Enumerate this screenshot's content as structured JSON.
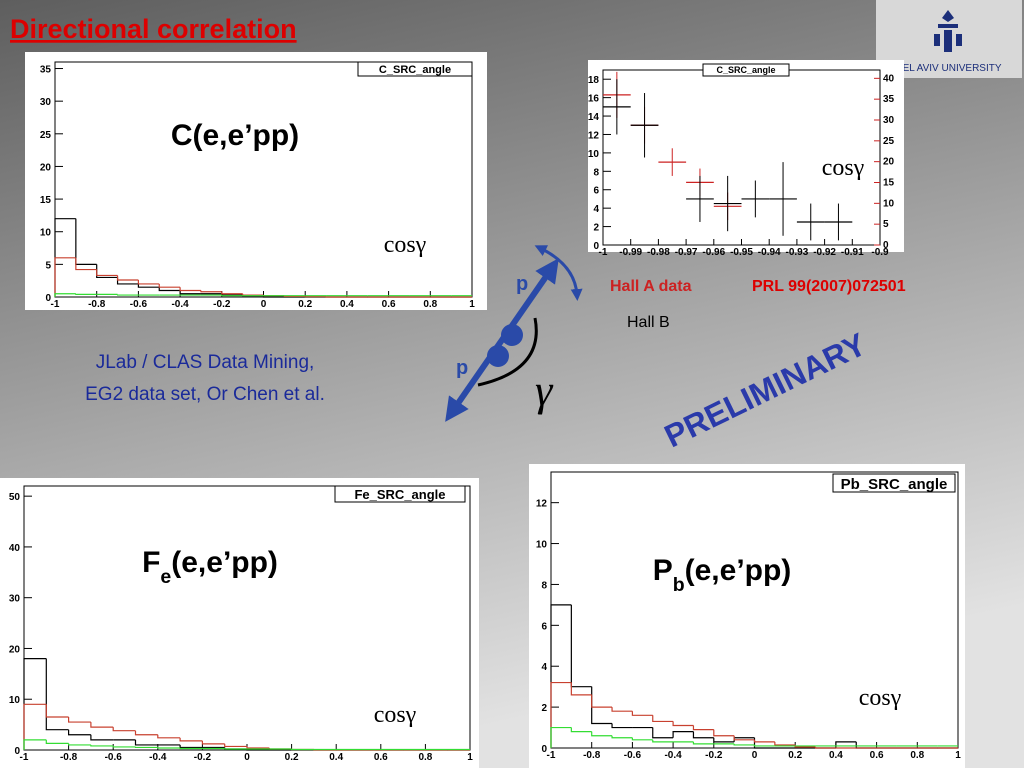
{
  "header": {
    "title": "Directional correlation"
  },
  "logo": {
    "text": "TEL AVIV UNIVERSITY"
  },
  "notes": {
    "line1": "JLab / CLAS Data Mining,",
    "line2": "EG2 data set,  Or Chen et al.",
    "stamp": "PRELIMINARY",
    "reference": "PRL 99(2007)072501"
  },
  "diagram": {
    "p_upper": "p",
    "p_lower": "p",
    "gamma": "γ"
  },
  "chart_data": [
    {
      "type": "histogram",
      "box_title": "C_SRC_angle",
      "reaction": {
        "main": "C(e,e’pp)"
      },
      "xlabel": "cosγ",
      "bins": [
        -1,
        -0.9,
        -0.8,
        -0.7,
        -0.6,
        -0.5,
        -0.4,
        -0.3,
        -0.2,
        -0.1,
        0,
        0.1,
        0.2,
        0.3,
        0.4,
        0.5,
        0.6,
        0.7,
        0.8,
        0.9,
        1
      ],
      "xlim": [
        -1,
        1
      ],
      "xticks": [
        -1,
        -0.8,
        -0.6,
        -0.4,
        -0.2,
        0,
        0.2,
        0.4,
        0.6,
        0.8,
        1
      ],
      "ylim": [
        0,
        36
      ],
      "yticks": [
        0,
        5,
        10,
        15,
        20,
        25,
        30,
        35
      ],
      "series": [
        {
          "color": "#000000",
          "values": [
            12,
            5,
            3,
            2,
            1.5,
            1,
            0.5,
            0.5,
            0.3,
            0.2,
            0,
            0,
            0,
            0,
            0,
            0,
            0,
            0,
            0,
            0
          ]
        },
        {
          "color": "#c8402f",
          "values": [
            6,
            4.2,
            3.3,
            2.6,
            2,
            1.5,
            1,
            0.8,
            0.5,
            0.3,
            0.2,
            0.1,
            0.05,
            0,
            0,
            0,
            0,
            0,
            0,
            0
          ]
        },
        {
          "color": "#33dd33",
          "values": [
            0.5,
            0.4,
            0.4,
            0.3,
            0.3,
            0.3,
            0.3,
            0.3,
            0.2,
            0.2,
            0.2,
            0.2,
            0.2,
            0.2,
            0.2,
            0.2,
            0.2,
            0.2,
            0.2,
            0.2
          ]
        }
      ]
    },
    {
      "type": "scatter",
      "box_title": "C_SRC_angle",
      "xlabel": "cosγ",
      "xlim": [
        -1,
        -0.9
      ],
      "xticks": [
        -1,
        -0.99,
        -0.98,
        -0.97,
        -0.96,
        -0.95,
        -0.94,
        -0.93,
        -0.92,
        -0.91,
        -0.9
      ],
      "ylim": [
        0,
        19
      ],
      "yticks": [
        0,
        2,
        4,
        6,
        8,
        10,
        12,
        14,
        16,
        18
      ],
      "y2lim": [
        0,
        42
      ],
      "y2ticks": [
        0,
        5,
        10,
        15,
        20,
        25,
        30,
        35,
        40
      ],
      "series": [
        {
          "name": "Hall A data",
          "color": "#cc2222",
          "x": [
            -0.995,
            -0.985,
            -0.975,
            -0.965,
            -0.955
          ],
          "values": [
            16.3,
            13,
            9,
            6.8,
            4.2
          ],
          "errors": [
            2.5,
            2,
            1.5,
            1.5,
            1.5
          ]
        },
        {
          "name": "Hall B",
          "color": "#000000",
          "x": [
            -0.995,
            -0.985,
            -0.965,
            -0.955,
            -0.945,
            -0.935,
            -0.925,
            -0.915
          ],
          "values": [
            15,
            13,
            5,
            4.5,
            5,
            5,
            2.5,
            2.5
          ],
          "errors": [
            3,
            3.5,
            2.5,
            3,
            2,
            4,
            2,
            2
          ]
        }
      ]
    },
    {
      "type": "histogram",
      "box_title": "Fe_SRC_angle",
      "reaction": {
        "main": "F",
        "sub": "e",
        "rest": "(e,e’pp)"
      },
      "xlabel": "cosγ",
      "bins": [
        -1,
        -0.9,
        -0.8,
        -0.7,
        -0.6,
        -0.5,
        -0.4,
        -0.3,
        -0.2,
        -0.1,
        0,
        0.1,
        0.2,
        0.3,
        0.4,
        0.5,
        0.6,
        0.7,
        0.8,
        0.9,
        1
      ],
      "xlim": [
        -1,
        1
      ],
      "xticks": [
        -1,
        -0.8,
        -0.6,
        -0.4,
        -0.2,
        0,
        0.2,
        0.4,
        0.6,
        0.8,
        1
      ],
      "ylim": [
        0,
        52
      ],
      "yticks": [
        0,
        10,
        20,
        30,
        40,
        50
      ],
      "series": [
        {
          "color": "#000000",
          "values": [
            18,
            4,
            3,
            2,
            2,
            1,
            1,
            0.5,
            0.5,
            0.2,
            0,
            0,
            0,
            0,
            0,
            0,
            0,
            0,
            0,
            0
          ]
        },
        {
          "color": "#c8402f",
          "values": [
            9,
            6.5,
            5.5,
            4.5,
            3.8,
            3,
            2.4,
            1.8,
            1.2,
            0.7,
            0.4,
            0.2,
            0.1,
            0,
            0,
            0,
            0,
            0,
            0,
            0
          ]
        },
        {
          "color": "#33dd33",
          "values": [
            2,
            1.3,
            1,
            0.8,
            0.6,
            0.5,
            0.4,
            0.3,
            0.3,
            0.2,
            0.2,
            0.2,
            0.1,
            0.1,
            0.1,
            0.1,
            0.1,
            0.1,
            0.1,
            0.1
          ]
        }
      ]
    },
    {
      "type": "histogram",
      "box_title": "Pb_SRC_angle",
      "reaction": {
        "main": "P",
        "sub": "b",
        "rest": "(e,e’pp)"
      },
      "xlabel": "cosγ",
      "bins": [
        -1,
        -0.9,
        -0.8,
        -0.7,
        -0.6,
        -0.5,
        -0.4,
        -0.3,
        -0.2,
        -0.1,
        0,
        0.1,
        0.2,
        0.3,
        0.4,
        0.5,
        0.6,
        0.7,
        0.8,
        0.9,
        1
      ],
      "xlim": [
        -1,
        1
      ],
      "xticks": [
        -1,
        -0.8,
        -0.6,
        -0.4,
        -0.2,
        0,
        0.2,
        0.4,
        0.6,
        0.8,
        1
      ],
      "ylim": [
        0,
        13.5
      ],
      "yticks": [
        0,
        2,
        4,
        6,
        8,
        10,
        12
      ],
      "series": [
        {
          "color": "#000000",
          "values": [
            7,
            3,
            1.2,
            1,
            1,
            0.5,
            0.8,
            0.5,
            0.3,
            0.5,
            0,
            0,
            0,
            0,
            0.3,
            0,
            0,
            0,
            0,
            0
          ]
        },
        {
          "color": "#c8402f",
          "values": [
            3.2,
            2.6,
            2,
            1.8,
            1.6,
            1.3,
            1.1,
            0.9,
            0.6,
            0.4,
            0.3,
            0.15,
            0.05,
            0,
            0,
            0,
            0,
            0,
            0,
            0
          ]
        },
        {
          "color": "#33dd33",
          "values": [
            1,
            0.8,
            0.6,
            0.5,
            0.4,
            0.3,
            0.3,
            0.2,
            0.2,
            0.15,
            0.1,
            0.1,
            0.1,
            0.1,
            0.1,
            0.1,
            0.1,
            0.1,
            0.1,
            0.1
          ]
        }
      ]
    }
  ]
}
